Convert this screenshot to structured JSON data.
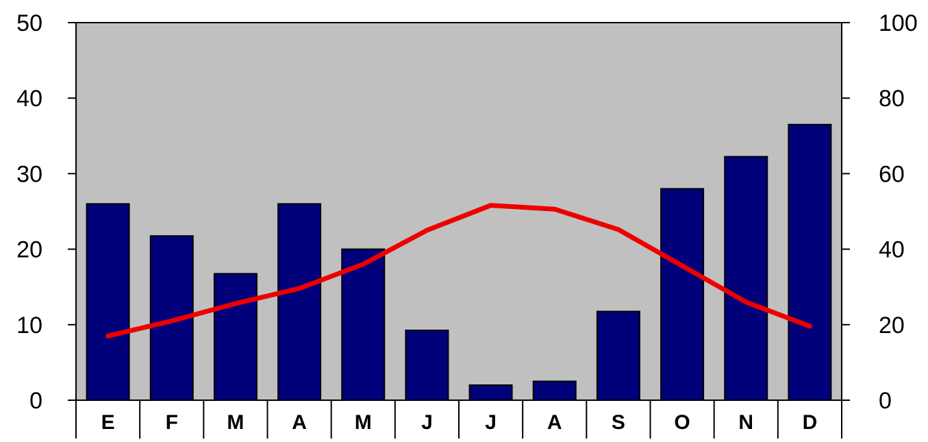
{
  "chart_data": {
    "type": "bar",
    "title": "",
    "xlabel": "",
    "ylabel": "",
    "categories": [
      "E",
      "F",
      "M",
      "A",
      "M",
      "J",
      "J",
      "A",
      "S",
      "O",
      "N",
      "D"
    ],
    "series": [
      {
        "type": "bar",
        "axis": "right",
        "color": "#00007a",
        "values": [
          52,
          43.5,
          33.5,
          52,
          40,
          18.5,
          4,
          5,
          23.5,
          56,
          64.5,
          73
        ]
      },
      {
        "type": "line",
        "axis": "left",
        "color": "#ee0000",
        "values": [
          8.5,
          10.5,
          12.8,
          14.8,
          18,
          22.5,
          25.8,
          25.3,
          22.6,
          17.8,
          13,
          9.8
        ]
      }
    ],
    "y_left": {
      "ylim": [
        0,
        50
      ],
      "ticks": [
        "0",
        "10",
        "20",
        "30",
        "40",
        "50"
      ]
    },
    "y_right": {
      "ylim": [
        0,
        100
      ],
      "ticks": [
        "0",
        "20",
        "40",
        "60",
        "80",
        "100"
      ]
    },
    "plot_background": "#c0c0c0",
    "grid": false,
    "legend": "none"
  }
}
